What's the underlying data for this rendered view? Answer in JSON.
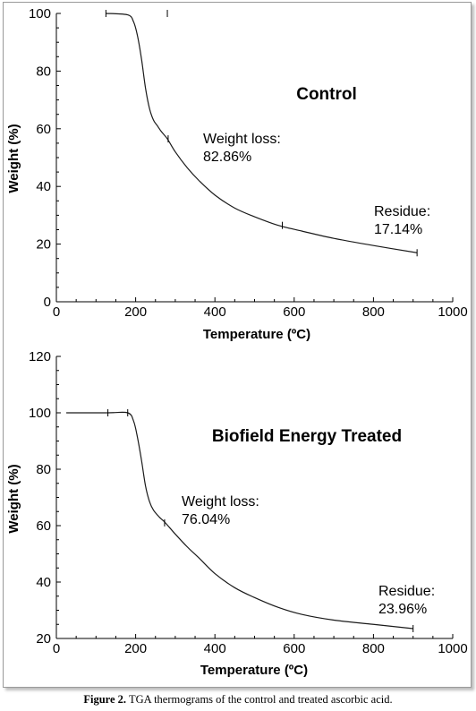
{
  "caption": {
    "label": "Figure 2.",
    "text": " TGA thermograms of the control and treated ascorbic acid."
  },
  "chart_data": [
    {
      "type": "line",
      "title": "Control",
      "xlabel": "Temperature",
      "xlabel_unit": "(ºC)",
      "ylabel": "Weight (%)",
      "xlim": [
        0,
        1000
      ],
      "ylim": [
        0,
        100
      ],
      "xticks": [
        "0",
        "200",
        "400",
        "600",
        "800",
        "1000"
      ],
      "yticks": [
        "0",
        "20",
        "40",
        "60",
        "80",
        "100"
      ],
      "grid": false,
      "series": [
        {
          "x": [
            125,
            180,
            195,
            205,
            215,
            225,
            235,
            245,
            255,
            265,
            280,
            300,
            330,
            360,
            400,
            450,
            500,
            560,
            620,
            700,
            800,
            910
          ],
          "y": [
            100,
            99.5,
            97,
            92,
            84,
            74,
            67,
            63,
            61,
            59,
            56.5,
            52,
            46.5,
            42,
            37,
            32.5,
            29.5,
            26.5,
            24.5,
            22,
            19.5,
            17
          ]
        }
      ],
      "markers": [
        {
          "x": 125,
          "y": 100
        },
        {
          "x": 280,
          "y": 100
        },
        {
          "x": 282,
          "y": 56.5
        },
        {
          "x": 570,
          "y": 26.5
        },
        {
          "x": 910,
          "y": 17
        }
      ],
      "annotations": [
        {
          "line1": "Weight loss:",
          "line2": "82.86%"
        },
        {
          "line1": "Residue:",
          "line2": "17.14%"
        }
      ]
    },
    {
      "type": "line",
      "title": "Biofield Energy Treated",
      "xlabel": "Temperature",
      "xlabel_unit": "(ºC)",
      "ylabel": "Weight (%)",
      "xlim": [
        0,
        1000
      ],
      "ylim": [
        20,
        120
      ],
      "xticks": [
        "0",
        "200",
        "400",
        "600",
        "800",
        "1000"
      ],
      "yticks": [
        "20",
        "40",
        "60",
        "80",
        "100",
        "120"
      ],
      "grid": false,
      "series": [
        {
          "x": [
            25,
            130,
            180,
            195,
            205,
            215,
            225,
            235,
            245,
            260,
            275,
            300,
            330,
            360,
            400,
            450,
            500,
            560,
            620,
            700,
            800,
            900
          ],
          "y": [
            100,
            100,
            100,
            97,
            91,
            83,
            74,
            68.5,
            65.5,
            63,
            61,
            57,
            52.5,
            48.5,
            43,
            38,
            34.5,
            31,
            28.5,
            26.5,
            25,
            23.5
          ]
        }
      ],
      "markers": [
        {
          "x": 130,
          "y": 100
        },
        {
          "x": 180,
          "y": 100
        },
        {
          "x": 273,
          "y": 61
        },
        {
          "x": 900,
          "y": 23.5
        }
      ],
      "annotations": [
        {
          "line1": "Weight loss:",
          "line2": "76.04%"
        },
        {
          "line1": "Residue:",
          "line2": "23.96%"
        }
      ]
    }
  ]
}
